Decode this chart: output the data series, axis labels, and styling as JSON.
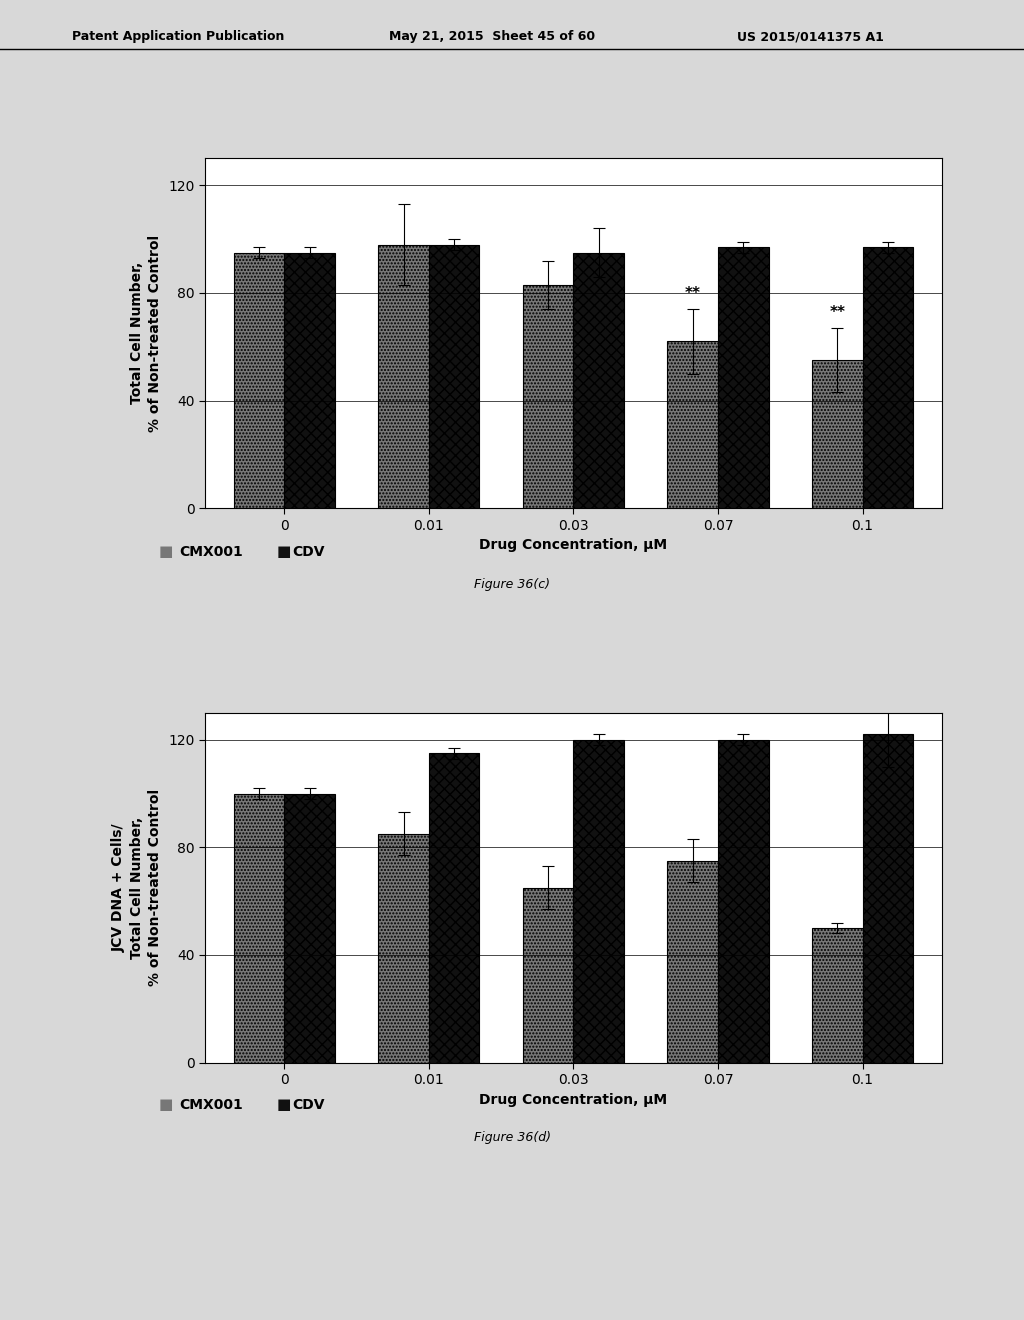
{
  "header_left": "Patent Application Publication",
  "header_mid": "May 21, 2015  Sheet 45 of 60",
  "header_right": "US 2015/0141375 A1",
  "x_labels": [
    "0",
    "0.01",
    "0.03",
    "0.07",
    "0.1"
  ],
  "x_positions": [
    0,
    1,
    2,
    3,
    4
  ],
  "xlabel": "Drug Concentration, μM",
  "legend_labels": [
    "CMX001",
    "CDV"
  ],
  "chart_c": {
    "title": "Figure 36(c)",
    "ylabel": "Total Cell Number,\n% of Non-treated Control",
    "cmx001_values": [
      95,
      98,
      83,
      62,
      55
    ],
    "cdv_values": [
      95,
      98,
      95,
      97,
      97
    ],
    "cmx001_errors": [
      2,
      15,
      9,
      12,
      12
    ],
    "cdv_errors": [
      2,
      2,
      9,
      2,
      2
    ],
    "significance": [
      false,
      false,
      false,
      true,
      true
    ],
    "ylim": [
      0,
      130
    ],
    "yticks": [
      0,
      40,
      80,
      120
    ]
  },
  "chart_d": {
    "title": "Figure 36(d)",
    "ylabel": "JCV DNA + Cells/\nTotal Cell Number,\n% of Non-treated Control",
    "cmx001_values": [
      100,
      85,
      65,
      75,
      50
    ],
    "cdv_values": [
      100,
      115,
      120,
      120,
      122
    ],
    "cmx001_errors": [
      2,
      8,
      8,
      8,
      2
    ],
    "cdv_errors": [
      2,
      2,
      2,
      2,
      12
    ],
    "significance": [
      false,
      false,
      false,
      false,
      false
    ],
    "ylim": [
      0,
      130
    ],
    "yticks": [
      0,
      40,
      80,
      120
    ]
  },
  "bar_width": 0.35,
  "cmx001_color": "#777777",
  "cdv_color": "#111111",
  "bg_color": "#d8d8d8",
  "fontsize_header": 9,
  "fontsize_axis": 10,
  "fontsize_tick": 10,
  "fontsize_legend": 10,
  "fontsize_title": 9
}
